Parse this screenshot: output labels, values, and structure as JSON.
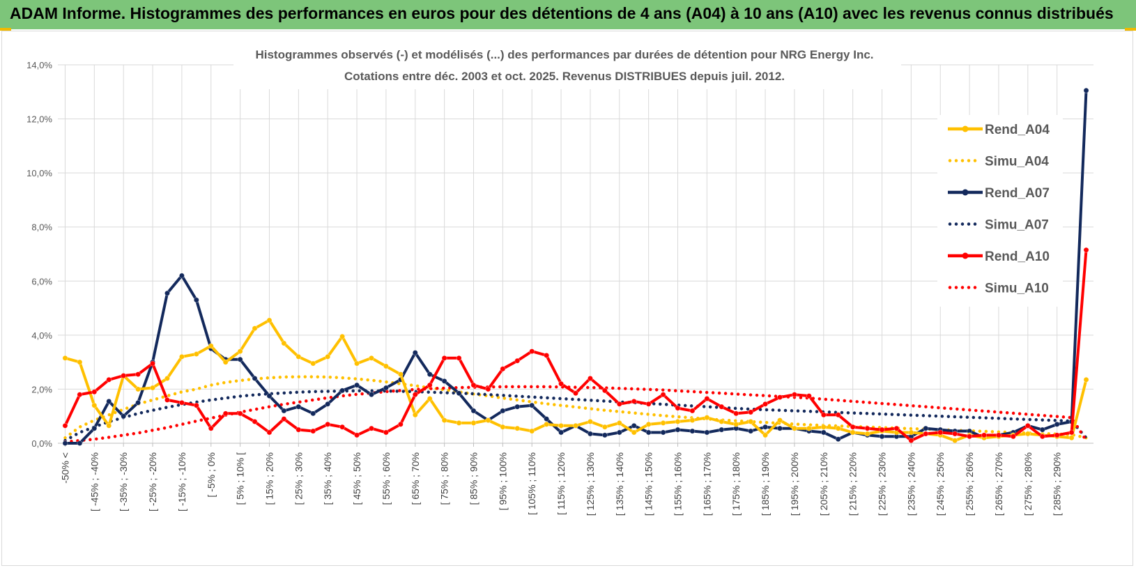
{
  "header": {
    "title": "ADAM Informe. Histogrammes des performances en euros pour des détentions de 4 ans (A04) à 10 ans (A10) avec les revenus connus distribués"
  },
  "chart_data": {
    "type": "line",
    "title": "Histogrammes observés (-) et modélisés (...) des performances par durées de détention pour NRG Energy Inc.",
    "subtitle": "Cotations entre déc. 2003 et oct. 2025. Revenus DISTRIBUES depuis juil. 2012.",
    "ylim": [
      0,
      14
    ],
    "yticks": [
      "0,0%",
      "2,0%",
      "4,0%",
      "6,0%",
      "8,0%",
      "10,0%",
      "12,0%",
      "14,0%"
    ],
    "grid": true,
    "legend_position": "right",
    "x_labels": [
      "-50% <",
      "[ -45% ; -40%",
      "[ -35% ; -30%",
      "[ -25% ; -20%",
      "[ -15% ; -10%",
      "[ -5% ; 0%",
      "[ 5% ; 10% [",
      "[ 15% ; 20%",
      "[ 25% ; 30%",
      "[ 35% ; 40%",
      "[ 45% ; 50%",
      "[ 55% ; 60%",
      "[ 65% ; 70%",
      "[ 75% ; 80%",
      "[ 85% ; 90%",
      "[ 95% ; 100%",
      "[ 105% ; 110%",
      "[ 115% ; 120%",
      "[ 125% ; 130%",
      "[ 135% ; 140%",
      "[ 145% ; 150%",
      "[ 155% ; 160%",
      "[ 165% ; 170%",
      "[ 175% ; 180%",
      "[ 185% ; 190%",
      "[ 195% ; 200%",
      "[ 205% ; 210%",
      "[ 215% ; 220%",
      "[ 225% ; 230%",
      "[ 235% ; 240%",
      "[ 245% ; 250%",
      "[ 255% ; 260%",
      "[ 265% ; 270%",
      "[ 275% ; 280%",
      "[ 285% ; 290%"
    ],
    "series": [
      {
        "name": "Rend_A04",
        "style": "solid",
        "color": "#ffc000",
        "values": [
          3.15,
          3.0,
          1.4,
          0.65,
          2.5,
          2.0,
          2.05,
          2.4,
          3.2,
          3.3,
          3.6,
          3.0,
          3.4,
          4.25,
          4.55,
          3.7,
          3.2,
          2.95,
          3.2,
          3.95,
          2.95,
          3.15,
          2.85,
          2.55,
          1.05,
          1.65,
          0.85,
          0.75,
          0.75,
          0.85,
          0.6,
          0.55,
          0.45,
          0.7,
          0.65,
          0.65,
          0.8,
          0.6,
          0.75,
          0.4,
          0.7,
          0.75,
          0.8,
          0.85,
          0.95,
          0.8,
          0.7,
          0.8,
          0.3,
          0.85,
          0.55,
          0.55,
          0.6,
          0.55,
          0.4,
          0.35,
          0.45,
          0.4,
          0.4,
          0.35,
          0.3,
          0.1,
          0.3,
          0.2,
          0.25,
          0.3,
          0.35,
          0.3,
          0.25,
          0.2,
          2.35
        ]
      },
      {
        "name": "Simu_A04",
        "style": "dotted",
        "color": "#ffc000",
        "values": [
          0.2,
          0.6,
          0.85,
          1.05,
          1.25,
          1.45,
          1.6,
          1.75,
          1.9,
          2.0,
          2.15,
          2.25,
          2.32,
          2.38,
          2.42,
          2.45,
          2.46,
          2.46,
          2.45,
          2.42,
          2.38,
          2.33,
          2.27,
          2.2,
          2.13,
          2.05,
          1.98,
          1.9,
          1.82,
          1.75,
          1.67,
          1.6,
          1.53,
          1.46,
          1.4,
          1.34,
          1.28,
          1.22,
          1.17,
          1.12,
          1.07,
          1.02,
          0.98,
          0.94,
          0.9,
          0.86,
          0.83,
          0.8,
          0.77,
          0.74,
          0.71,
          0.68,
          0.66,
          0.64,
          0.62,
          0.6,
          0.58,
          0.56,
          0.54,
          0.52,
          0.5,
          0.48,
          0.46,
          0.44,
          0.42,
          0.4,
          0.38,
          0.36,
          0.34,
          0.32,
          0.2
        ]
      },
      {
        "name": "Rend_A07",
        "style": "solid",
        "color": "#13295c",
        "values": [
          0.0,
          0.0,
          0.55,
          1.55,
          1.0,
          1.5,
          3.0,
          5.55,
          6.2,
          5.3,
          3.5,
          3.1,
          3.1,
          2.4,
          1.75,
          1.2,
          1.35,
          1.1,
          1.45,
          1.95,
          2.15,
          1.8,
          2.05,
          2.35,
          3.35,
          2.55,
          2.3,
          1.85,
          1.2,
          0.85,
          1.2,
          1.35,
          1.4,
          0.9,
          0.4,
          0.65,
          0.35,
          0.3,
          0.4,
          0.65,
          0.4,
          0.4,
          0.5,
          0.45,
          0.4,
          0.5,
          0.55,
          0.45,
          0.6,
          0.55,
          0.55,
          0.45,
          0.4,
          0.15,
          0.4,
          0.3,
          0.25,
          0.25,
          0.25,
          0.55,
          0.5,
          0.45,
          0.45,
          0.2,
          0.3,
          0.4,
          0.65,
          0.5,
          0.7,
          0.8,
          13.05
        ]
      },
      {
        "name": "Simu_A07",
        "style": "dotted",
        "color": "#13295c",
        "values": [
          0.1,
          0.4,
          0.6,
          0.8,
          0.95,
          1.1,
          1.22,
          1.33,
          1.43,
          1.52,
          1.6,
          1.67,
          1.74,
          1.79,
          1.83,
          1.86,
          1.89,
          1.91,
          1.92,
          1.93,
          1.94,
          1.94,
          1.93,
          1.92,
          1.91,
          1.89,
          1.87,
          1.85,
          1.83,
          1.8,
          1.77,
          1.74,
          1.71,
          1.68,
          1.65,
          1.62,
          1.59,
          1.56,
          1.53,
          1.5,
          1.47,
          1.44,
          1.41,
          1.38,
          1.35,
          1.32,
          1.29,
          1.26,
          1.24,
          1.22,
          1.2,
          1.18,
          1.16,
          1.14,
          1.12,
          1.1,
          1.08,
          1.06,
          1.04,
          1.02,
          1.0,
          0.98,
          0.96,
          0.94,
          0.92,
          0.9,
          0.88,
          0.86,
          0.84,
          0.82,
          0.2
        ]
      },
      {
        "name": "Rend_A10",
        "style": "solid",
        "color": "#ff0000",
        "values": [
          0.65,
          1.8,
          1.9,
          2.35,
          2.5,
          2.55,
          2.95,
          1.6,
          1.5,
          1.4,
          0.55,
          1.1,
          1.1,
          0.8,
          0.4,
          0.9,
          0.5,
          0.45,
          0.7,
          0.6,
          0.3,
          0.55,
          0.4,
          0.7,
          1.8,
          2.15,
          3.15,
          3.15,
          2.15,
          2.0,
          2.75,
          3.05,
          3.4,
          3.25,
          2.2,
          1.85,
          2.4,
          1.95,
          1.45,
          1.55,
          1.45,
          1.8,
          1.3,
          1.2,
          1.65,
          1.35,
          1.1,
          1.15,
          1.45,
          1.7,
          1.8,
          1.75,
          1.05,
          1.05,
          0.6,
          0.55,
          0.5,
          0.55,
          0.1,
          0.35,
          0.4,
          0.35,
          0.25,
          0.3,
          0.3,
          0.25,
          0.65,
          0.25,
          0.3,
          0.4,
          7.15
        ]
      },
      {
        "name": "Simu_A10",
        "style": "dotted",
        "color": "#ff0000",
        "values": [
          0.05,
          0.1,
          0.15,
          0.22,
          0.3,
          0.38,
          0.48,
          0.58,
          0.7,
          0.82,
          0.93,
          1.04,
          1.15,
          1.25,
          1.35,
          1.44,
          1.52,
          1.6,
          1.68,
          1.75,
          1.81,
          1.86,
          1.91,
          1.95,
          1.99,
          2.02,
          2.04,
          2.06,
          2.07,
          2.08,
          2.09,
          2.09,
          2.09,
          2.09,
          2.08,
          2.07,
          2.06,
          2.05,
          2.03,
          2.01,
          1.99,
          1.97,
          1.94,
          1.91,
          1.88,
          1.85,
          1.82,
          1.79,
          1.76,
          1.73,
          1.7,
          1.67,
          1.63,
          1.59,
          1.55,
          1.51,
          1.47,
          1.43,
          1.39,
          1.35,
          1.31,
          1.27,
          1.23,
          1.19,
          1.15,
          1.11,
          1.07,
          1.03,
          0.99,
          0.95,
          0.1
        ]
      }
    ]
  }
}
